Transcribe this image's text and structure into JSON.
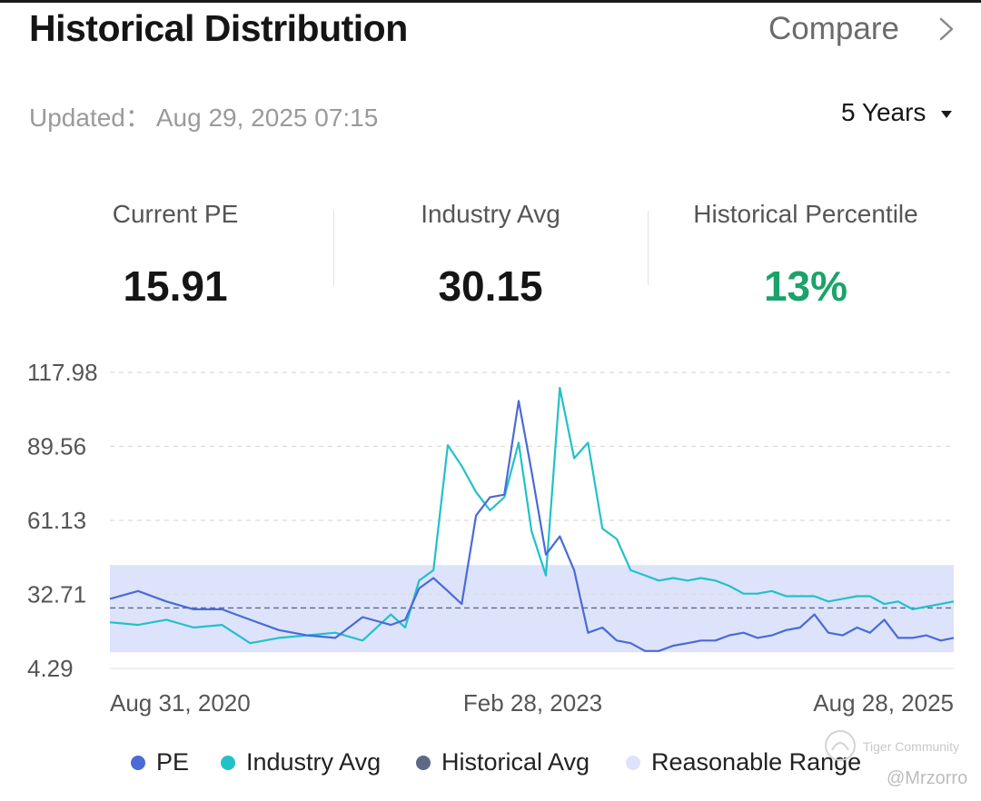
{
  "header": {
    "title": "Historical Distribution",
    "compare_label": "Compare",
    "updated_label": "Updated：",
    "updated_value": "Aug 29, 2025 07:15",
    "period_label": "5 Years"
  },
  "stats": [
    {
      "label": "Current PE",
      "value": "15.91"
    },
    {
      "label": "Industry Avg",
      "value": "30.15"
    },
    {
      "label": "Historical Percentile",
      "value": "13%"
    }
  ],
  "colors": {
    "pe": "#4a6ad6",
    "industry": "#22c1c9",
    "historical_avg": "#5c6a86",
    "range": "#dde3fb",
    "percentile": "#1aa36b"
  },
  "chart_data": {
    "type": "line",
    "yticks": [
      "117.98",
      "89.56",
      "61.13",
      "32.71",
      "4.29"
    ],
    "ylim": [
      4.29,
      117.98
    ],
    "xticks": [
      "Aug 31, 2020",
      "Feb 28, 2023",
      "Aug 28, 2025"
    ],
    "x_range": [
      "2020-08-31",
      "2025-08-28"
    ],
    "grid": "horizontal dashed",
    "legend_position": "bottom",
    "historical_avg": 27.5,
    "reasonable_range": [
      10.5,
      44
    ],
    "series": [
      {
        "name": "PE",
        "x": [
          "2020-08-31",
          "2020-10-31",
          "2020-12-31",
          "2021-02-28",
          "2021-04-30",
          "2021-06-30",
          "2021-08-31",
          "2021-10-31",
          "2021-12-31",
          "2022-02-28",
          "2022-04-30",
          "2022-05-31",
          "2022-06-30",
          "2022-07-31",
          "2022-08-31",
          "2022-09-30",
          "2022-10-31",
          "2022-11-30",
          "2022-12-31",
          "2023-01-31",
          "2023-02-28",
          "2023-03-31",
          "2023-04-30",
          "2023-05-31",
          "2023-06-30",
          "2023-07-31",
          "2023-08-31",
          "2023-09-30",
          "2023-10-31",
          "2023-11-30",
          "2023-12-31",
          "2024-01-31",
          "2024-02-29",
          "2024-03-31",
          "2024-04-30",
          "2024-05-31",
          "2024-06-30",
          "2024-07-31",
          "2024-08-31",
          "2024-09-30",
          "2024-10-31",
          "2024-11-30",
          "2024-12-31",
          "2025-01-31",
          "2025-02-28",
          "2025-03-31",
          "2025-04-30",
          "2025-05-31",
          "2025-06-30",
          "2025-07-31",
          "2025-08-28"
        ],
        "values": [
          31,
          34,
          30,
          27,
          27,
          23,
          19,
          17,
          16,
          24,
          21,
          23,
          35,
          39,
          34,
          29,
          63,
          70,
          71,
          107,
          80,
          48,
          55,
          42,
          18,
          20,
          15,
          14,
          11,
          11,
          13,
          14,
          15,
          15,
          17,
          18,
          16,
          17,
          19,
          20,
          25,
          18,
          17,
          20,
          18,
          23,
          16,
          16,
          17,
          15,
          16
        ]
      },
      {
        "name": "Industry Avg",
        "x": [
          "2020-08-31",
          "2020-10-31",
          "2020-12-31",
          "2021-02-28",
          "2021-04-30",
          "2021-06-30",
          "2021-08-31",
          "2021-10-31",
          "2021-12-31",
          "2022-02-28",
          "2022-04-30",
          "2022-05-31",
          "2022-06-30",
          "2022-07-31",
          "2022-08-31",
          "2022-09-30",
          "2022-10-31",
          "2022-11-30",
          "2022-12-31",
          "2023-01-31",
          "2023-02-28",
          "2023-03-31",
          "2023-04-30",
          "2023-05-31",
          "2023-06-30",
          "2023-07-31",
          "2023-08-31",
          "2023-09-30",
          "2023-10-31",
          "2023-11-30",
          "2023-12-31",
          "2024-01-31",
          "2024-02-29",
          "2024-03-31",
          "2024-04-30",
          "2024-05-31",
          "2024-06-30",
          "2024-07-31",
          "2024-08-31",
          "2024-09-30",
          "2024-10-31",
          "2024-11-30",
          "2024-12-31",
          "2025-01-31",
          "2025-02-28",
          "2025-03-31",
          "2025-04-30",
          "2025-05-31",
          "2025-06-30",
          "2025-07-31",
          "2025-08-28"
        ],
        "values": [
          22,
          21,
          23,
          20,
          21,
          14,
          16,
          17,
          18,
          15,
          25,
          20,
          38,
          42,
          90,
          82,
          72,
          65,
          70,
          91,
          57,
          40,
          112,
          85,
          91,
          58,
          54,
          42,
          40,
          38,
          39,
          38,
          39,
          38,
          36,
          33,
          33,
          34,
          32,
          32,
          32,
          30,
          31,
          32,
          32,
          29,
          30,
          27,
          28,
          29,
          30
        ]
      }
    ]
  },
  "legend": [
    {
      "label": "PE"
    },
    {
      "label": "Industry Avg"
    },
    {
      "label": "Historical Avg"
    },
    {
      "label": "Reasonable Range"
    }
  ],
  "watermark": {
    "text": "Tiger Community",
    "credit": "@Mrzorro"
  }
}
